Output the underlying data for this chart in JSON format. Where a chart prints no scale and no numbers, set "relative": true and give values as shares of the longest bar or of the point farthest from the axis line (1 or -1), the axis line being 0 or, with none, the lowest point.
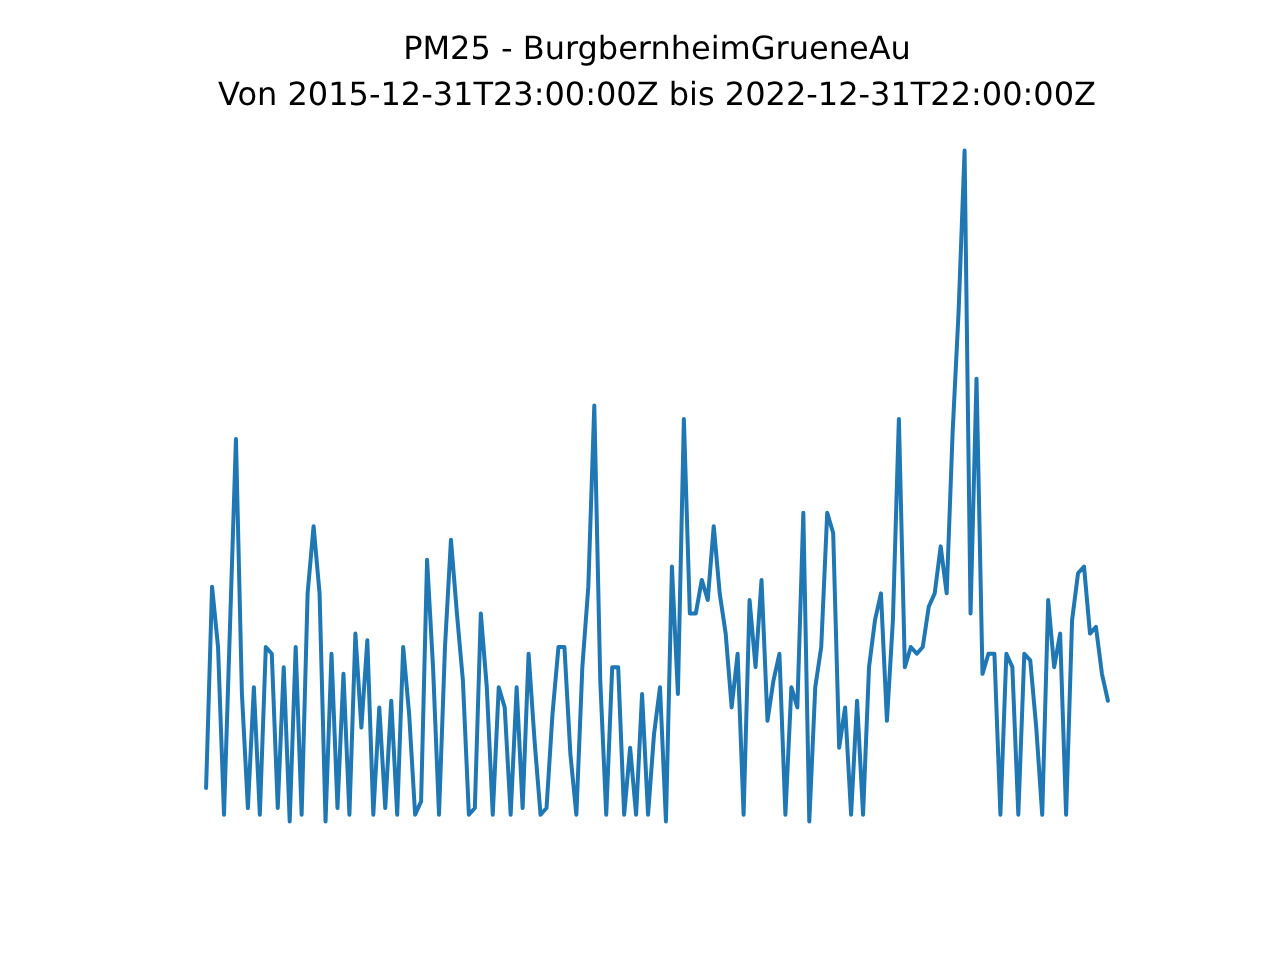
{
  "chart_data": {
    "type": "line",
    "title": "PM25 - BurgbernheimGrueneAu",
    "subtitle": "Von 2015-12-31T23:00:00Z bis 2022-12-31T22:00:00Z",
    "relative": true,
    "categories": [
      null,
      null,
      null,
      null,
      null,
      null,
      null,
      null,
      null,
      null,
      null,
      null,
      null,
      null,
      null,
      null,
      null,
      null,
      null,
      null,
      null,
      null,
      null,
      null,
      null,
      null,
      null,
      null,
      null,
      null,
      null,
      null,
      null,
      null,
      null,
      null,
      null,
      null,
      null,
      null,
      null,
      null,
      null,
      null,
      null,
      null,
      null,
      null,
      null,
      null,
      null,
      null,
      null,
      null,
      null,
      null,
      null,
      null,
      null,
      null,
      null,
      null,
      null,
      null,
      null,
      null,
      null,
      null,
      null,
      null,
      null,
      null,
      null,
      null,
      null,
      null,
      null,
      null,
      null,
      null,
      null,
      null,
      null,
      null,
      null,
      null,
      null,
      null,
      null,
      null,
      null,
      null,
      null,
      null,
      null,
      null,
      null,
      null,
      null,
      null,
      null,
      null,
      null,
      null,
      null,
      null,
      null,
      null,
      null,
      null,
      null,
      null,
      null,
      null,
      null,
      null,
      null,
      null,
      null,
      null,
      null,
      null,
      null,
      null,
      null,
      null,
      null,
      null,
      null,
      null,
      null,
      null,
      null,
      null,
      null,
      null,
      null,
      null,
      null,
      null,
      null,
      null,
      null,
      null,
      null,
      null,
      null,
      null,
      null,
      null,
      null,
      null
    ],
    "series": [
      {
        "color": "#1f77b4",
        "values": [
          0.05,
          0.35,
          0.26,
          0.01,
          0.29,
          0.57,
          0.19,
          0.02,
          0.2,
          0.01,
          0.26,
          0.25,
          0.02,
          0.23,
          0.0,
          0.26,
          0.01,
          0.34,
          0.44,
          0.34,
          0.0,
          0.25,
          0.02,
          0.22,
          0.01,
          0.28,
          0.14,
          0.27,
          0.01,
          0.17,
          0.02,
          0.18,
          0.01,
          0.26,
          0.16,
          0.01,
          0.03,
          0.39,
          0.23,
          0.01,
          0.26,
          0.42,
          0.31,
          0.21,
          0.01,
          0.02,
          0.31,
          0.2,
          0.01,
          0.2,
          0.17,
          0.01,
          0.2,
          0.02,
          0.25,
          0.12,
          0.01,
          0.02,
          0.16,
          0.26,
          0.26,
          0.1,
          0.01,
          0.23,
          0.35,
          0.62,
          0.21,
          0.01,
          0.23,
          0.23,
          0.01,
          0.11,
          0.01,
          0.19,
          0.01,
          0.13,
          0.2,
          0.0,
          0.38,
          0.19,
          0.6,
          0.31,
          0.31,
          0.36,
          0.33,
          0.44,
          0.34,
          0.28,
          0.17,
          0.25,
          0.01,
          0.33,
          0.23,
          0.36,
          0.15,
          0.21,
          0.25,
          0.01,
          0.2,
          0.17,
          0.46,
          0.0,
          0.2,
          0.26,
          0.46,
          0.43,
          0.11,
          0.17,
          0.01,
          0.18,
          0.01,
          0.23,
          0.3,
          0.34,
          0.15,
          0.3,
          0.6,
          0.23,
          0.26,
          0.25,
          0.26,
          0.32,
          0.34,
          0.41,
          0.34,
          0.58,
          0.76,
          1.0,
          0.31,
          0.66,
          0.22,
          0.25,
          0.25,
          0.01,
          0.25,
          0.23,
          0.01,
          0.25,
          0.24,
          0.14,
          0.01,
          0.33,
          0.23,
          0.28,
          0.01,
          0.3,
          0.37,
          0.38,
          0.28,
          0.29,
          0.22,
          0.18
        ]
      }
    ]
  }
}
